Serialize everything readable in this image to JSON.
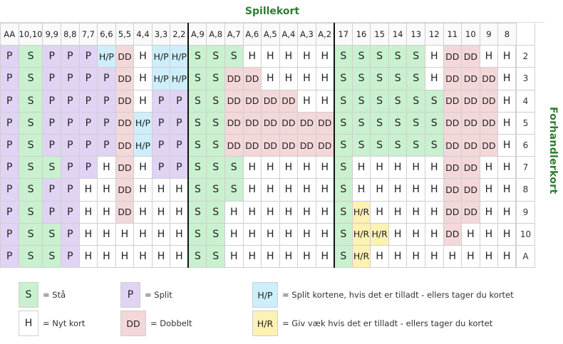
{
  "title": "Spillekort",
  "side_title": "Forhandlerkort",
  "columns": [
    "AA",
    "10,10",
    "9,9",
    "8,8",
    "7,7",
    "6,6",
    "5,5",
    "4,4",
    "3,3",
    "2,2",
    "A,9",
    "A,8",
    "A,7",
    "A,6",
    "A,5",
    "A,4",
    "A,3",
    "A,2",
    "17",
    "16",
    "15",
    "14",
    "13",
    "12",
    "11",
    "10",
    "9",
    "8"
  ],
  "rows": [
    {
      "dealer": "2",
      "cells": [
        "P",
        "S",
        "P",
        "P",
        "P",
        "H/P",
        "DD",
        "H",
        "H/P",
        "H/P",
        "S",
        "S",
        "S",
        "H",
        "H",
        "H",
        "H",
        "H",
        "S",
        "S",
        "S",
        "S",
        "S",
        "H",
        "DD",
        "DD",
        "H",
        "H"
      ]
    },
    {
      "dealer": "3",
      "cells": [
        "P",
        "S",
        "P",
        "P",
        "P",
        "P",
        "DD",
        "H",
        "H/P",
        "H/P",
        "S",
        "S",
        "DD",
        "DD",
        "H",
        "H",
        "H",
        "H",
        "S",
        "S",
        "S",
        "S",
        "S",
        "H",
        "DD",
        "DD",
        "DD",
        "H"
      ]
    },
    {
      "dealer": "4",
      "cells": [
        "P",
        "S",
        "P",
        "P",
        "P",
        "P",
        "DD",
        "H",
        "P",
        "P",
        "S",
        "S",
        "DD",
        "DD",
        "DD",
        "DD",
        "H",
        "H",
        "S",
        "S",
        "S",
        "S",
        "S",
        "S",
        "DD",
        "DD",
        "DD",
        "H"
      ]
    },
    {
      "dealer": "5",
      "cells": [
        "P",
        "S",
        "P",
        "P",
        "P",
        "P",
        "DD",
        "H/P",
        "P",
        "P",
        "S",
        "S",
        "DD",
        "DD",
        "DD",
        "DD",
        "DD",
        "DD",
        "S",
        "S",
        "S",
        "S",
        "S",
        "S",
        "DD",
        "DD",
        "DD",
        "H"
      ]
    },
    {
      "dealer": "6",
      "cells": [
        "P",
        "S",
        "P",
        "P",
        "P",
        "P",
        "DD",
        "H/P",
        "P",
        "P",
        "S",
        "S",
        "DD",
        "DD",
        "DD",
        "DD",
        "DD",
        "DD",
        "S",
        "S",
        "S",
        "S",
        "S",
        "S",
        "DD",
        "DD",
        "DD",
        "H"
      ]
    },
    {
      "dealer": "7",
      "cells": [
        "P",
        "S",
        "S",
        "P",
        "P",
        "H",
        "DD",
        "H",
        "P",
        "P",
        "S",
        "S",
        "S",
        "H",
        "H",
        "H",
        "H",
        "H",
        "S",
        "H",
        "H",
        "H",
        "H",
        "H",
        "DD",
        "DD",
        "H",
        "H"
      ]
    },
    {
      "dealer": "8",
      "cells": [
        "P",
        "S",
        "P",
        "P",
        "H",
        "H",
        "DD",
        "H",
        "H",
        "H",
        "S",
        "S",
        "S",
        "H",
        "H",
        "H",
        "H",
        "H",
        "S",
        "H",
        "H",
        "H",
        "H",
        "H",
        "DD",
        "DD",
        "H",
        "H"
      ]
    },
    {
      "dealer": "9",
      "cells": [
        "P",
        "S",
        "P",
        "P",
        "H",
        "H",
        "DD",
        "H",
        "H",
        "H",
        "S",
        "S",
        "H",
        "H",
        "H",
        "H",
        "H",
        "H",
        "S",
        "H/R",
        "H",
        "H",
        "H",
        "H",
        "DD",
        "DD",
        "H",
        "H"
      ]
    },
    {
      "dealer": "10",
      "cells": [
        "P",
        "S",
        "S",
        "P",
        "H",
        "H",
        "H",
        "H",
        "H",
        "H",
        "S",
        "S",
        "H",
        "H",
        "H",
        "H",
        "H",
        "H",
        "S",
        "H/R",
        "H/R",
        "H",
        "H",
        "H",
        "DD",
        "H",
        "H",
        "H"
      ]
    },
    {
      "dealer": "A",
      "cells": [
        "P",
        "S",
        "S",
        "P",
        "H",
        "H",
        "H",
        "H",
        "H",
        "H",
        "S",
        "S",
        "H",
        "H",
        "H",
        "H",
        "H",
        "H",
        "S",
        "H/R",
        "H",
        "H",
        "H",
        "H",
        "H",
        "H",
        "H",
        "H"
      ]
    }
  ],
  "legend": [
    {
      "code": "S",
      "text": "= Stå",
      "color": "#c9f0cf"
    },
    {
      "code": "H",
      "text": "= Nyt kort",
      "color": "#ffffff"
    },
    {
      "code": "P",
      "text": "= Split",
      "color": "#e0d3f3"
    },
    {
      "code": "DD",
      "text": "= Dobbelt",
      "color": "#f3d7d9"
    },
    {
      "code": "H/P",
      "text": "= Split kortene, hvis det er tilladt - ellers tager du kortet",
      "color": "#cdeefb"
    },
    {
      "code": "H/R",
      "text": "= Giv væk hvis det er tilladt - ellers tager du kortet",
      "color": "#fdf1b3"
    }
  ]
}
